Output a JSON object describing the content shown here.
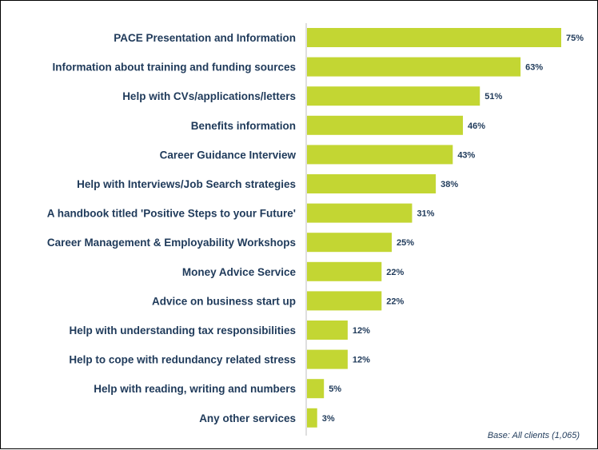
{
  "chart_data": {
    "type": "bar",
    "orientation": "horizontal",
    "categories": [
      "PACE Presentation and Information",
      "Information about training and funding sources",
      "Help with CVs/applications/letters",
      "Benefits information",
      "Career Guidance Interview",
      "Help with Interviews/Job Search strategies",
      "A handbook titled 'Positive Steps to your Future'",
      "Career Management & Employability  Workshops",
      "Money Advice Service",
      "Advice on business start up",
      "Help with understanding tax responsibilities",
      "Help to cope with redundancy related stress",
      "Help with reading, writing and numbers",
      "Any other services"
    ],
    "values": [
      75,
      63,
      51,
      46,
      43,
      38,
      31,
      25,
      22,
      22,
      12,
      12,
      5,
      3
    ],
    "value_labels": [
      "75%",
      "63%",
      "51%",
      "46%",
      "43%",
      "38%",
      "31%",
      "25%",
      "22%",
      "22%",
      "12%",
      "12%",
      "5%",
      "3%"
    ],
    "xlim": [
      0,
      75
    ],
    "bar_color": "#c3d633",
    "text_color": "#1f3a5a",
    "grid": false,
    "title": "",
    "xlabel": "",
    "ylabel": ""
  },
  "note": "Base: All clients (1,065)"
}
